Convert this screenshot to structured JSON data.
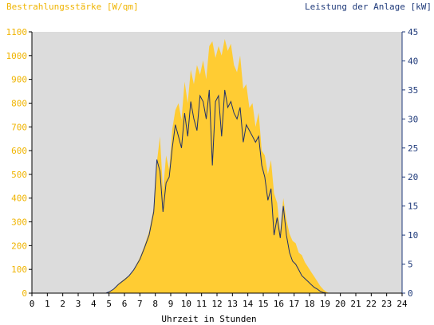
{
  "chart_data": {
    "type": "area",
    "y_left_label": "Bestrahlungsstärke [W/qm]",
    "y_right_label": "Leistung der Anlage [kW]",
    "xlabel": "Uhrzeit in Stunden",
    "xlim": [
      0,
      24
    ],
    "ylim_left": [
      0,
      1100
    ],
    "ylim_right": [
      0,
      45
    ],
    "x_ticks": [
      "0",
      "1",
      "2",
      "3",
      "4",
      "5",
      "6",
      "7",
      "8",
      "9",
      "10",
      "11",
      "12",
      "13",
      "14",
      "15",
      "16",
      "17",
      "18",
      "19",
      "20",
      "21",
      "22",
      "23",
      "24"
    ],
    "y_left_ticks": [
      "0",
      "100",
      "200",
      "300",
      "400",
      "500",
      "600",
      "700",
      "800",
      "900",
      "1000",
      "1100"
    ],
    "y_right_ticks": [
      "0",
      "5",
      "10",
      "15",
      "20",
      "25",
      "30",
      "35",
      "40",
      "45"
    ],
    "grid": false,
    "colors": {
      "irradiance_fill": "#FFCC33",
      "power_line": "#1F2F6B",
      "plot_bg": "#DCDCDC",
      "left_axis_text": "#F0B400",
      "right_axis_text": "#1F3A7A"
    },
    "series": [
      {
        "axis": "left",
        "x": [
          0,
          4.8,
          5.0,
          5.3,
          5.6,
          6.0,
          6.3,
          6.6,
          7.0,
          7.3,
          7.6,
          7.9,
          8.1,
          8.3,
          8.5,
          8.7,
          8.9,
          9.1,
          9.3,
          9.5,
          9.7,
          9.9,
          10.1,
          10.3,
          10.5,
          10.7,
          10.9,
          11.1,
          11.3,
          11.5,
          11.7,
          11.9,
          12.1,
          12.3,
          12.5,
          12.7,
          12.9,
          13.1,
          13.3,
          13.5,
          13.7,
          13.9,
          14.1,
          14.3,
          14.5,
          14.7,
          14.9,
          15.1,
          15.3,
          15.5,
          15.7,
          15.9,
          16.1,
          16.3,
          16.5,
          16.7,
          16.9,
          17.1,
          17.3,
          17.5,
          17.7,
          17.9,
          18.1,
          18.3,
          18.5,
          18.7,
          18.9,
          19.1,
          19.3,
          19.5,
          19.7,
          20.0,
          20.2,
          24
        ],
        "values": [
          0,
          0,
          5,
          15,
          40,
          60,
          75,
          100,
          150,
          200,
          260,
          360,
          550,
          660,
          430,
          580,
          520,
          690,
          770,
          800,
          730,
          890,
          800,
          940,
          880,
          960,
          920,
          980,
          900,
          1040,
          1060,
          990,
          1040,
          1000,
          1070,
          1020,
          1050,
          960,
          930,
          1000,
          860,
          880,
          780,
          800,
          700,
          760,
          600,
          580,
          500,
          560,
          420,
          380,
          260,
          400,
          310,
          250,
          220,
          210,
          170,
          160,
          130,
          110,
          90,
          70,
          50,
          30,
          15,
          5,
          0,
          0,
          0,
          0,
          0,
          0
        ]
      },
      {
        "axis": "right",
        "x": [
          0,
          4.8,
          5.0,
          5.3,
          5.6,
          6.0,
          6.3,
          6.6,
          7.0,
          7.3,
          7.6,
          7.9,
          8.1,
          8.3,
          8.5,
          8.7,
          8.9,
          9.1,
          9.3,
          9.5,
          9.7,
          9.9,
          10.1,
          10.3,
          10.5,
          10.7,
          10.9,
          11.1,
          11.3,
          11.5,
          11.7,
          11.9,
          12.1,
          12.3,
          12.5,
          12.7,
          12.9,
          13.1,
          13.3,
          13.5,
          13.7,
          13.9,
          14.1,
          14.3,
          14.5,
          14.7,
          14.9,
          15.1,
          15.3,
          15.5,
          15.7,
          15.9,
          16.1,
          16.3,
          16.5,
          16.7,
          16.9,
          17.1,
          17.3,
          17.5,
          17.7,
          17.9,
          18.1,
          18.3,
          18.5,
          18.7,
          18.9,
          19.1,
          19.3,
          19.5,
          19.7,
          20.0,
          20.2,
          24
        ],
        "values": [
          0,
          0,
          0.2,
          0.7,
          1.5,
          2.3,
          3.0,
          4.0,
          5.8,
          7.8,
          10.0,
          14.0,
          23.0,
          21.0,
          14.0,
          19.0,
          20.0,
          25.0,
          29.0,
          27.0,
          25.0,
          31.0,
          27.0,
          33.0,
          30.0,
          28.0,
          34.0,
          33.0,
          30.0,
          35.0,
          22.0,
          33.0,
          34.0,
          27.0,
          35.0,
          32.0,
          33.0,
          31.0,
          30.0,
          32.0,
          26.0,
          29.0,
          28.0,
          27.0,
          26.0,
          27.0,
          22.0,
          20.0,
          16.0,
          18.0,
          10.0,
          13.0,
          9.5,
          15.0,
          10.0,
          7.0,
          5.5,
          5.0,
          4.0,
          3.0,
          2.5,
          2.0,
          1.5,
          1.0,
          0.7,
          0.3,
          0.1,
          0,
          0,
          0,
          0,
          0,
          0,
          0
        ]
      }
    ]
  }
}
